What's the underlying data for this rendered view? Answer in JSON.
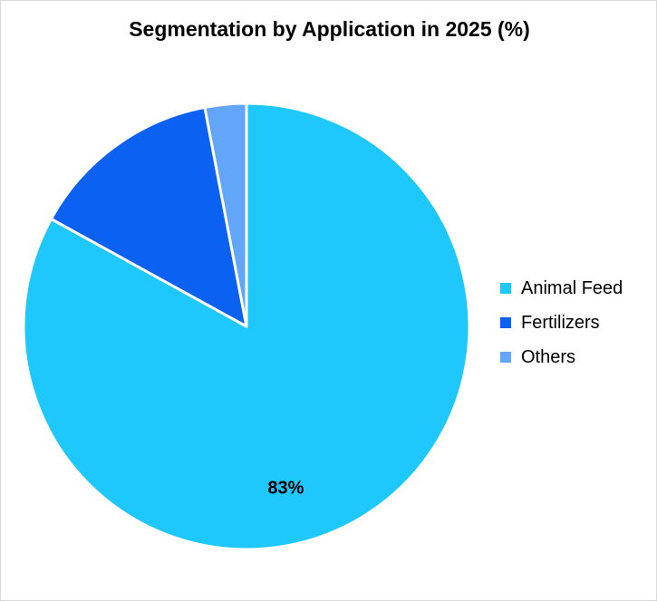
{
  "chart_data": {
    "type": "pie",
    "title": "Segmentation by Application in 2025 (%)",
    "categories": [
      "Animal Feed",
      "Fertilizers",
      "Others"
    ],
    "values": [
      83,
      14,
      3
    ],
    "colors": [
      "#1ec8fc",
      "#0a61f2",
      "#63a5f9"
    ],
    "data_labels": [
      "83%",
      "",
      ""
    ],
    "legend_position": "right",
    "start_angle": "12 o'clock",
    "direction": "clockwise"
  }
}
